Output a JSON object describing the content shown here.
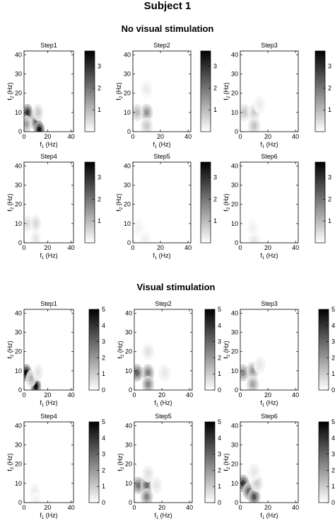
{
  "figure": {
    "title": "Subject 1",
    "sections": [
      {
        "title": "No visual stimulation"
      },
      {
        "title": "Visual stimulation"
      }
    ]
  },
  "colors": {
    "colormap": "gray-reversed",
    "background": "#ffffff",
    "axes": "#000000"
  },
  "chart_data": [
    {
      "type": "heatmap",
      "section": "No visual stimulation",
      "title": "Step1",
      "xlabel": "f1 (Hz)",
      "ylabel": "f2 (Hz)",
      "x_ticks": [
        0,
        20,
        40
      ],
      "y_ticks": [
        0,
        10,
        20,
        30,
        40
      ],
      "xlim": [
        0,
        42
      ],
      "ylim": [
        0,
        42
      ],
      "colorbar": {
        "ticks": [
          1,
          2,
          3
        ],
        "range": [
          0,
          3.7
        ]
      },
      "blobs": [
        {
          "f1": 3,
          "f2": 10,
          "value": 3.1
        },
        {
          "f1": 10,
          "f2": 5,
          "value": 2.2
        },
        {
          "f1": 13,
          "f2": 1,
          "value": 3.6
        },
        {
          "f1": 12,
          "f2": 10,
          "value": 0.8
        },
        {
          "f1": 2,
          "f2": 4,
          "value": 1.4
        }
      ]
    },
    {
      "type": "heatmap",
      "section": "No visual stimulation",
      "title": "Step2",
      "xlabel": "f1 (Hz)",
      "ylabel": "f2 (Hz)",
      "x_ticks": [
        0,
        20,
        40
      ],
      "y_ticks": [
        0,
        10,
        20,
        30,
        40
      ],
      "xlim": [
        0,
        42
      ],
      "ylim": [
        0,
        42
      ],
      "colorbar": {
        "ticks": [
          1,
          2,
          3
        ],
        "range": [
          0,
          3.7
        ]
      },
      "blobs": [
        {
          "f1": 10,
          "f2": 10,
          "value": 1.6
        },
        {
          "f1": 3,
          "f2": 10,
          "value": 1.0
        },
        {
          "f1": 10,
          "f2": 3,
          "value": 0.8
        },
        {
          "f1": 10,
          "f2": 22,
          "value": 0.3
        }
      ]
    },
    {
      "type": "heatmap",
      "section": "No visual stimulation",
      "title": "Step3",
      "xlabel": "f1 (Hz)",
      "ylabel": "f2 (Hz)",
      "x_ticks": [
        0,
        20,
        40
      ],
      "y_ticks": [
        0,
        10,
        20,
        30,
        40
      ],
      "xlim": [
        0,
        42
      ],
      "ylim": [
        0,
        42
      ],
      "colorbar": {
        "ticks": [
          1,
          2,
          3
        ],
        "range": [
          0,
          3.7
        ]
      },
      "blobs": [
        {
          "f1": 3,
          "f2": 10,
          "value": 0.8
        },
        {
          "f1": 10,
          "f2": 10,
          "value": 0.7
        },
        {
          "f1": 10,
          "f2": 3,
          "value": 0.9
        },
        {
          "f1": 14,
          "f2": 14,
          "value": 0.3
        }
      ]
    },
    {
      "type": "heatmap",
      "section": "No visual stimulation",
      "title": "Step4",
      "xlabel": "f1 (Hz)",
      "ylabel": "f2 (Hz)",
      "x_ticks": [
        0,
        20,
        40
      ],
      "y_ticks": [
        0,
        10,
        20,
        30,
        40
      ],
      "xlim": [
        0,
        42
      ],
      "ylim": [
        0,
        42
      ],
      "colorbar": {
        "ticks": [
          1,
          2,
          3
        ],
        "range": [
          0,
          3.7
        ]
      },
      "blobs": [
        {
          "f1": 3,
          "f2": 10,
          "value": 0.5
        },
        {
          "f1": 10,
          "f2": 10,
          "value": 0.6
        },
        {
          "f1": 10,
          "f2": 2,
          "value": 0.4
        }
      ]
    },
    {
      "type": "heatmap",
      "section": "No visual stimulation",
      "title": "Step5",
      "xlabel": "f1 (Hz)",
      "ylabel": "f2 (Hz)",
      "x_ticks": [
        0,
        20,
        40
      ],
      "y_ticks": [
        0,
        10,
        20,
        30,
        40
      ],
      "xlim": [
        0,
        42
      ],
      "ylim": [
        0,
        42
      ],
      "colorbar": {
        "ticks": [
          1,
          2,
          3
        ],
        "range": [
          0,
          3.7
        ]
      },
      "blobs": [
        {
          "f1": 4,
          "f2": 8,
          "value": 0.2
        },
        {
          "f1": 9,
          "f2": 2,
          "value": 0.25
        }
      ]
    },
    {
      "type": "heatmap",
      "section": "No visual stimulation",
      "title": "Step6",
      "xlabel": "f1 (Hz)",
      "ylabel": "f2 (Hz)",
      "x_ticks": [
        0,
        20,
        40
      ],
      "y_ticks": [
        0,
        10,
        20,
        30,
        40
      ],
      "xlim": [
        0,
        42
      ],
      "ylim": [
        0,
        42
      ],
      "colorbar": {
        "ticks": [
          1,
          2,
          3
        ],
        "range": [
          0,
          3.7
        ]
      },
      "blobs": [
        {
          "f1": 10,
          "f2": 1,
          "value": 0.35
        },
        {
          "f1": 9,
          "f2": 8,
          "value": 0.2
        }
      ]
    },
    {
      "type": "heatmap",
      "section": "Visual stimulation",
      "title": "Step1",
      "xlabel": "f1 (Hz)",
      "ylabel": "f2 (Hz)",
      "x_ticks": [
        0,
        20,
        40
      ],
      "y_ticks": [
        0,
        10,
        20,
        30,
        40
      ],
      "xlim": [
        0,
        42
      ],
      "ylim": [
        0,
        42
      ],
      "colorbar": {
        "ticks": [
          0,
          1,
          2,
          3,
          4,
          5
        ],
        "range": [
          0,
          5
        ]
      },
      "blobs": [
        {
          "f1": 2,
          "f2": 9,
          "value": 5.0
        },
        {
          "f1": 10,
          "f2": 2,
          "value": 5.0
        },
        {
          "f1": 6,
          "f2": 6,
          "value": 1.5
        },
        {
          "f1": 12,
          "f2": 9,
          "value": 0.6
        }
      ]
    },
    {
      "type": "heatmap",
      "section": "Visual stimulation",
      "title": "Step2",
      "xlabel": "f1 (Hz)",
      "ylabel": "f2 (Hz)",
      "x_ticks": [
        0,
        20,
        40
      ],
      "y_ticks": [
        0,
        10,
        20,
        30,
        40
      ],
      "xlim": [
        0,
        42
      ],
      "ylim": [
        0,
        42
      ],
      "colorbar": {
        "ticks": [
          0,
          1,
          2,
          3,
          4,
          5
        ],
        "range": [
          0,
          5
        ]
      },
      "blobs": [
        {
          "f1": 2,
          "f2": 9,
          "value": 3.2
        },
        {
          "f1": 10,
          "f2": 9,
          "value": 2.6
        },
        {
          "f1": 10,
          "f2": 3,
          "value": 2.4
        },
        {
          "f1": 10,
          "f2": 20,
          "value": 0.6
        },
        {
          "f1": 22,
          "f2": 9,
          "value": 0.5
        }
      ]
    },
    {
      "type": "heatmap",
      "section": "Visual stimulation",
      "title": "Step3",
      "xlabel": "f1 (Hz)",
      "ylabel": "f2 (Hz)",
      "x_ticks": [
        0,
        20,
        40
      ],
      "y_ticks": [
        0,
        10,
        20,
        30,
        40
      ],
      "xlim": [
        0,
        42
      ],
      "ylim": [
        0,
        42
      ],
      "colorbar": {
        "ticks": [
          0,
          1,
          2,
          3,
          4,
          5
        ],
        "range": [
          0,
          5
        ]
      },
      "blobs": [
        {
          "f1": 2,
          "f2": 9,
          "value": 2.4
        },
        {
          "f1": 9,
          "f2": 10,
          "value": 2.0
        },
        {
          "f1": 9,
          "f2": 3,
          "value": 1.8
        },
        {
          "f1": 14,
          "f2": 13,
          "value": 0.5
        }
      ]
    },
    {
      "type": "heatmap",
      "section": "Visual stimulation",
      "title": "Step4",
      "xlabel": "f1 (Hz)",
      "ylabel": "f2 (Hz)",
      "x_ticks": [
        0,
        20,
        40
      ],
      "y_ticks": [
        0,
        10,
        20,
        30,
        40
      ],
      "xlim": [
        0,
        42
      ],
      "ylim": [
        0,
        42
      ],
      "colorbar": {
        "ticks": [
          0,
          1,
          2,
          3,
          4,
          5
        ],
        "range": [
          0,
          5
        ]
      },
      "blobs": [
        {
          "f1": 9,
          "f2": 6,
          "value": 0.4
        },
        {
          "f1": 10,
          "f2": 1,
          "value": 0.3
        }
      ]
    },
    {
      "type": "heatmap",
      "section": "Visual stimulation",
      "title": "Step5",
      "xlabel": "f1 (Hz)",
      "ylabel": "f2 (Hz)",
      "x_ticks": [
        0,
        20,
        40
      ],
      "y_ticks": [
        0,
        10,
        20,
        30,
        40
      ],
      "xlim": [
        0,
        42
      ],
      "ylim": [
        0,
        42
      ],
      "colorbar": {
        "ticks": [
          0,
          1,
          2,
          3,
          4,
          5
        ],
        "range": [
          0,
          5
        ]
      },
      "blobs": [
        {
          "f1": 3,
          "f2": 9,
          "value": 2.8
        },
        {
          "f1": 9,
          "f2": 9,
          "value": 3.0
        },
        {
          "f1": 9,
          "f2": 3,
          "value": 2.5
        },
        {
          "f1": 10,
          "f2": 15,
          "value": 0.6
        },
        {
          "f1": 16,
          "f2": 9,
          "value": 0.5
        }
      ]
    },
    {
      "type": "heatmap",
      "section": "Visual stimulation",
      "title": "Step6",
      "xlabel": "f1 (Hz)",
      "ylabel": "f2 (Hz)",
      "x_ticks": [
        0,
        20,
        40
      ],
      "y_ticks": [
        0,
        10,
        20,
        30,
        40
      ],
      "xlim": [
        0,
        42
      ],
      "ylim": [
        0,
        42
      ],
      "colorbar": {
        "ticks": [
          0,
          1,
          2,
          3,
          4,
          5
        ],
        "range": [
          0,
          5
        ]
      },
      "blobs": [
        {
          "f1": 2,
          "f2": 10,
          "value": 4.0
        },
        {
          "f1": 6,
          "f2": 6,
          "value": 3.0
        },
        {
          "f1": 10,
          "f2": 3,
          "value": 3.5
        },
        {
          "f1": 12,
          "f2": 10,
          "value": 1.0
        },
        {
          "f1": 10,
          "f2": 16,
          "value": 0.5
        }
      ]
    }
  ]
}
